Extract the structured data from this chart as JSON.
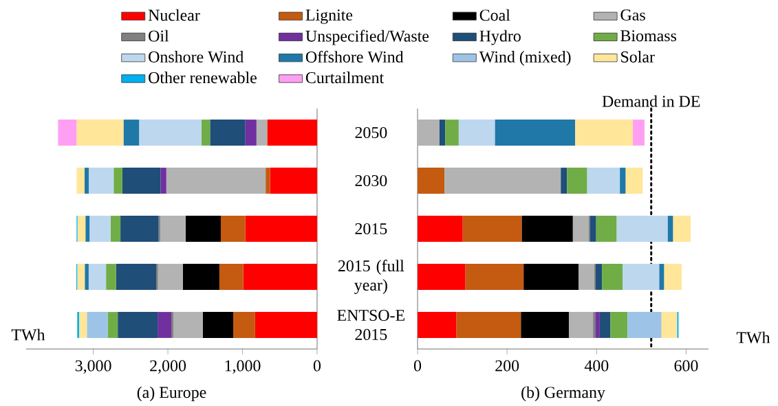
{
  "chart_data": [
    {
      "type": "bar",
      "orientation": "horizontal",
      "stacked": true,
      "title": "(a) Europe",
      "xlabel": "TWh",
      "categories": [
        "2050",
        "2030",
        "2015",
        "2015 (full year)",
        "ENTSO-E 2015"
      ],
      "xlim": [
        3900,
        0
      ],
      "xticks": [
        0,
        {
          "value": 1000,
          "label": "1,000"
        },
        {
          "value": 2000,
          "label": "2,000"
        },
        {
          "value": 3000,
          "label": "3,000"
        }
      ],
      "legend": "top",
      "series": [
        {
          "name": "Nuclear",
          "color": "#ff0000",
          "values": [
            669,
            632,
            963,
            991,
            831
          ]
        },
        {
          "name": "Lignite",
          "color": "#c55a11",
          "values": [
            null,
            58,
            328,
            319,
            294
          ]
        },
        {
          "name": "Coal",
          "color": "#000000",
          "values": [
            null,
            null,
            472,
            488,
            408
          ]
        },
        {
          "name": "Gas",
          "color": "#b3b3b3",
          "values": [
            144,
            1331,
            340,
            334,
            393
          ]
        },
        {
          "name": "Oil",
          "color": "#808080",
          "values": [
            null,
            null,
            21,
            25,
            28
          ]
        },
        {
          "name": "Unspecified/Waste",
          "color": "#7030a0",
          "values": [
            153,
            77,
            null,
            null,
            184
          ]
        },
        {
          "name": "Hydro",
          "color": "#1f4e79",
          "values": [
            469,
            512,
            512,
            537,
            534
          ]
        },
        {
          "name": "Biomass",
          "color": "#70ad47",
          "values": [
            117,
            117,
            132,
            135,
            135
          ]
        },
        {
          "name": "Onshore Wind",
          "color": "#bdd7ee",
          "values": [
            834,
            334,
            282,
            233,
            null
          ]
        },
        {
          "name": "Offshore Wind",
          "color": "#1f78a8",
          "values": [
            209,
            55,
            55,
            52,
            null
          ]
        },
        {
          "name": "Wind (mixed)",
          "color": "#9dc3e6",
          "values": [
            null,
            null,
            null,
            null,
            279
          ]
        },
        {
          "name": "Solar",
          "color": "#ffe699",
          "values": [
            629,
            107,
            107,
            101,
            104
          ]
        },
        {
          "name": "Other renewable",
          "color": "#00b0f0",
          "values": [
            null,
            null,
            12,
            12,
            25
          ]
        },
        {
          "name": "Curtailment",
          "color": "#ff9ff3",
          "values": [
            248,
            null,
            null,
            null,
            null
          ]
        }
      ]
    },
    {
      "type": "bar",
      "orientation": "horizontal",
      "stacked": true,
      "title": "(b) Germany",
      "xlabel": "TWh",
      "categories": [
        null,
        null,
        null,
        null,
        null
      ],
      "tick_labels": "x",
      "xlim": [
        0,
        650
      ],
      "xticks": [
        0,
        200,
        400,
        600
      ],
      "ref_lines": [
        {
          "axis": "x",
          "value": 522,
          "label": "Demand in DE",
          "line_style": "dotted",
          "color": "#000000"
        }
      ],
      "series": [
        {
          "color": "#ff0000",
          "values": [
            null,
            null,
            101,
            107,
            87
          ]
        },
        {
          "color": "#c55a11",
          "values": [
            null,
            60,
            132,
            130,
            144
          ]
        },
        {
          "color": "#000000",
          "values": [
            null,
            null,
            114,
            123,
            107
          ]
        },
        {
          "color": "#b3b3b3",
          "values": [
            49,
            260,
            35,
            35,
            54
          ]
        },
        {
          "color": "#808080",
          "values": [
            null,
            null,
            3,
            3,
            5
          ]
        },
        {
          "color": "#7030a0",
          "values": [
            null,
            null,
            null,
            null,
            10
          ]
        },
        {
          "color": "#1f4e79",
          "values": [
            13,
            14,
            14,
            14,
            24
          ]
        },
        {
          "color": "#70ad47",
          "values": [
            30,
            45,
            46,
            46,
            38
          ]
        },
        {
          "color": "#bdd7ee",
          "values": [
            81,
            73,
            114,
            82,
            null
          ]
        },
        {
          "color": "#1f78a8",
          "values": [
            179,
            13,
            12,
            11,
            null
          ]
        },
        {
          "color": "#9dc3e6",
          "values": [
            null,
            null,
            null,
            null,
            76
          ]
        },
        {
          "color": "#ffe699",
          "values": [
            129,
            38,
            39,
            39,
            35
          ]
        },
        {
          "color": "#00b0f0",
          "values": [
            null,
            null,
            null,
            null,
            3
          ]
        },
        {
          "color": "#ff9ff3",
          "values": [
            26,
            null,
            null,
            null,
            null
          ]
        }
      ]
    }
  ]
}
